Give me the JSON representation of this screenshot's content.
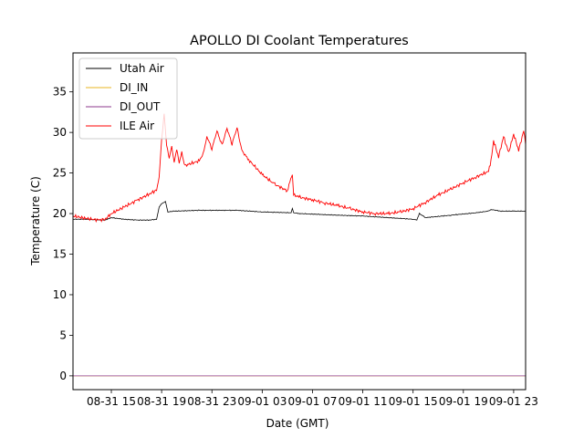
{
  "chart_data": {
    "type": "line",
    "title": "APOLLO DI Coolant Temperatures",
    "xlabel": "Date (GMT)",
    "ylabel": "Temperature (C)",
    "x_unit": "hours since 08-31 00:00 GMT",
    "xlim": [
      11.95,
      47.95
    ],
    "ylim": [
      -1.7,
      39.8
    ],
    "grid": false,
    "legend_position": "top-left",
    "x_ticks": [
      {
        "value": 15,
        "label": "08-31 15"
      },
      {
        "value": 19,
        "label": "08-31 19"
      },
      {
        "value": 23,
        "label": "08-31 23"
      },
      {
        "value": 27,
        "label": "09-01 03"
      },
      {
        "value": 31,
        "label": "09-01 07"
      },
      {
        "value": 35,
        "label": "09-01 11"
      },
      {
        "value": 39,
        "label": "09-01 15"
      },
      {
        "value": 43,
        "label": "09-01 19"
      },
      {
        "value": 47,
        "label": "09-01 23"
      }
    ],
    "y_ticks": [
      {
        "value": 0,
        "label": "0"
      },
      {
        "value": 5,
        "label": "5"
      },
      {
        "value": 10,
        "label": "10"
      },
      {
        "value": 15,
        "label": "15"
      },
      {
        "value": 20,
        "label": "20"
      },
      {
        "value": 25,
        "label": "25"
      },
      {
        "value": 30,
        "label": "30"
      },
      {
        "value": 35,
        "label": "35"
      }
    ],
    "series": [
      {
        "name": "Utah Air",
        "color": "#000000",
        "x": [
          11.95,
          13,
          14,
          14.5,
          15,
          16,
          17,
          18,
          18.6,
          18.8,
          19.0,
          19.3,
          19.5,
          20,
          22,
          25,
          27,
          29.3,
          29.4,
          29.5,
          30,
          33,
          35,
          37,
          39,
          39.3,
          39.5,
          40,
          42,
          44,
          45,
          45.2,
          46,
          47,
          47.95
        ],
        "y": [
          19.3,
          19.3,
          19.2,
          19.2,
          19.5,
          19.3,
          19.2,
          19.2,
          19.3,
          20.8,
          21.2,
          21.5,
          20.2,
          20.3,
          20.4,
          20.4,
          20.2,
          20.1,
          20.6,
          20.1,
          20.0,
          19.8,
          19.7,
          19.5,
          19.3,
          19.2,
          20.0,
          19.5,
          19.8,
          20.1,
          20.3,
          20.5,
          20.3,
          20.3,
          20.3
        ]
      },
      {
        "name": "DI_IN",
        "color": "#e8b520",
        "x": [
          11.95,
          47.95
        ],
        "y": [
          0,
          0
        ]
      },
      {
        "name": "DI_OUT",
        "color": "#8e3a8e",
        "x": [
          11.95,
          47.95
        ],
        "y": [
          0,
          0
        ]
      },
      {
        "name": "ILE Air",
        "color": "#ff0000",
        "x": [
          11.95,
          13,
          14,
          14.5,
          15,
          16,
          17,
          18,
          18.6,
          18.8,
          19.0,
          19.2,
          19.4,
          19.6,
          19.8,
          20.0,
          20.2,
          20.4,
          20.6,
          20.8,
          21,
          22,
          22.3,
          22.6,
          23,
          23.4,
          23.8,
          24.2,
          24.6,
          25,
          25.3,
          25.5,
          26,
          27,
          28,
          29,
          29.4,
          29.5,
          30,
          31,
          32,
          33,
          34,
          35,
          36,
          37,
          38,
          39,
          40,
          41,
          42,
          43,
          44,
          45,
          45.2,
          45.4,
          45.8,
          46.2,
          46.6,
          47,
          47.4,
          47.8,
          47.95
        ],
        "y": [
          19.7,
          19.4,
          19.2,
          19.3,
          20.0,
          20.8,
          21.6,
          22.4,
          22.9,
          24.5,
          29.0,
          32.3,
          28.5,
          26.8,
          28.2,
          26.3,
          28.0,
          26.2,
          27.5,
          26.1,
          26.0,
          26.5,
          27.3,
          29.5,
          28.0,
          30.2,
          28.4,
          30.5,
          28.6,
          30.6,
          28.2,
          27.5,
          26.5,
          24.8,
          23.6,
          22.8,
          25.0,
          22.3,
          22.0,
          21.7,
          21.3,
          21.0,
          20.6,
          20.2,
          20.0,
          20.0,
          20.2,
          20.6,
          21.4,
          22.3,
          23.0,
          23.8,
          24.5,
          25.2,
          26.5,
          29.0,
          27.0,
          29.5,
          27.5,
          29.8,
          27.8,
          30.2,
          28.5
        ]
      }
    ]
  }
}
